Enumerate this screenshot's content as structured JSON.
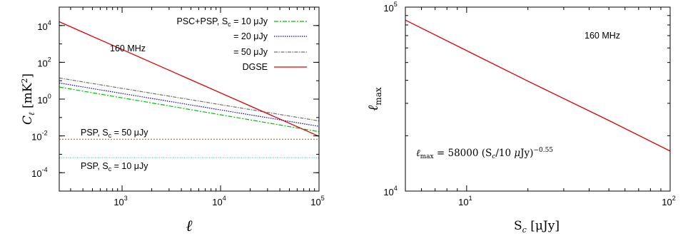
{
  "chart_data": [
    {
      "type": "line",
      "xscale": "log",
      "yscale": "log",
      "xlim": [
        230,
        100000
      ],
      "ylim": [
        1e-05,
        100000
      ],
      "xlabel": "ℓ",
      "ylabel": "Cℓ [mK²]",
      "x_ticks": [
        {
          "base": "10",
          "exp": "3"
        },
        {
          "base": "10",
          "exp": "4"
        },
        {
          "base": "10",
          "exp": "5"
        }
      ],
      "y_ticks": [
        {
          "base": "10",
          "exp": "-4"
        },
        {
          "base": "10",
          "exp": "-2"
        },
        {
          "base": "10",
          "exp": "0"
        },
        {
          "base": "10",
          "exp": "2"
        },
        {
          "base": "10",
          "exp": "4"
        }
      ],
      "annotations": {
        "freq": "160 MHz",
        "psp50_main": "PSP, S",
        "psp50_sub": "c",
        "psp50_rest": " = 50 μJy",
        "psp10_main": "PSP, S",
        "psp10_sub": "c",
        "psp10_rest": " = 10 μJy"
      },
      "legend_position": "top-right",
      "series": [
        {
          "name_main": "PSC+PSP, S",
          "name_sub": "c",
          "name_rest": " = 10 μJy",
          "color": "#00c000",
          "dash": "6,2,2,2",
          "x": [
            230,
            100000
          ],
          "y": [
            4.5,
            0.017
          ]
        },
        {
          "name": "= 20 μJy",
          "color": "#0000c0",
          "dash": "1.5,1.5",
          "x": [
            230,
            100000
          ],
          "y": [
            7.5,
            0.033
          ]
        },
        {
          "name": "= 50 μJy",
          "color": "#707070",
          "dash": "5,1.5,1.5,1.5",
          "x": [
            230,
            100000
          ],
          "y": [
            14,
            0.065
          ]
        },
        {
          "name": "DGSE",
          "color": "#e00000",
          "dash": "",
          "x": [
            230,
            100000
          ],
          "y": [
            16000,
            0.0095
          ]
        },
        {
          "name": "",
          "color": "#e07020",
          "dash": "2,2",
          "x": [
            230,
            100000
          ],
          "y": [
            0.0065,
            0.0065
          ]
        },
        {
          "name": "",
          "color": "#00d8d8",
          "dash": "1,1.5",
          "x": [
            230,
            100000
          ],
          "y": [
            0.00065,
            0.00065
          ]
        }
      ]
    },
    {
      "type": "line",
      "xscale": "log",
      "yscale": "log",
      "xlim": [
        5,
        100
      ],
      "ylim": [
        10000,
        100000
      ],
      "xlabel_main": "S",
      "xlabel_sub": "c",
      "xlabel_rest": " [μJy]",
      "ylabel": "ℓmax",
      "x_ticks": [
        {
          "base": "10",
          "exp": "1"
        },
        {
          "base": "10",
          "exp": "2"
        }
      ],
      "y_ticks": [
        {
          "base": "10",
          "exp": "4"
        },
        {
          "base": "10",
          "exp": "5"
        }
      ],
      "annotations": {
        "freq": "160 MHz",
        "formula": "ℓmax = 58000 (Sc/10 μJy)^−0.55"
      },
      "series": [
        {
          "name": "",
          "color": "#e00000",
          "x": [
            5,
            10,
            20,
            50,
            100
          ],
          "y": [
            85000,
            58000,
            39600,
            24200,
            16500
          ]
        }
      ]
    }
  ]
}
